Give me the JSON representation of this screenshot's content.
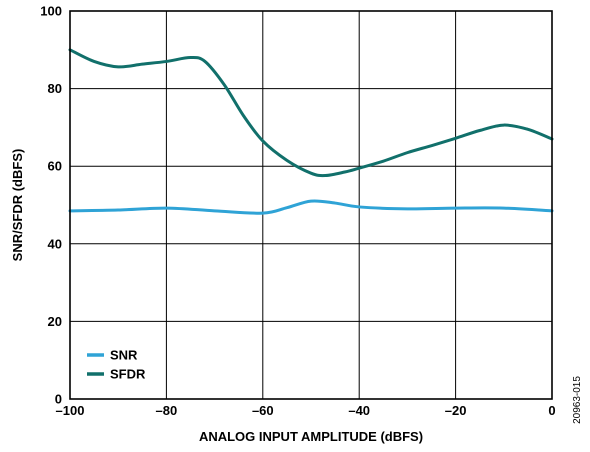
{
  "chart_data": {
    "type": "line",
    "xlabel": "ANALOG INPUT AMPLITUDE (dBFS)",
    "ylabel": "SNR/SFDR (dBFS)",
    "xlim": [
      -100,
      0
    ],
    "ylim": [
      0,
      100
    ],
    "x_ticks": [
      -100,
      -80,
      -60,
      -40,
      -20,
      0
    ],
    "x_tick_labels": [
      "–100",
      "–80",
      "–60",
      "–40",
      "–20",
      "0"
    ],
    "y_ticks": [
      0,
      20,
      40,
      60,
      80,
      100
    ],
    "y_tick_labels": [
      "0",
      "20",
      "40",
      "60",
      "80",
      "100"
    ],
    "grid": true,
    "legend_position": "bottom-left",
    "series": [
      {
        "name": "SNR",
        "color": "#2fa3d6",
        "points": [
          [
            -100,
            48.5
          ],
          [
            -90,
            48.7
          ],
          [
            -80,
            49.2
          ],
          [
            -70,
            48.5
          ],
          [
            -60,
            47.9
          ],
          [
            -55,
            49.3
          ],
          [
            -50,
            51.0
          ],
          [
            -45,
            50.5
          ],
          [
            -40,
            49.5
          ],
          [
            -30,
            49.0
          ],
          [
            -20,
            49.2
          ],
          [
            -10,
            49.2
          ],
          [
            0,
            48.5
          ]
        ]
      },
      {
        "name": "SFDR",
        "color": "#11706b",
        "points": [
          [
            -100,
            90.0
          ],
          [
            -95,
            87.0
          ],
          [
            -90,
            85.6
          ],
          [
            -85,
            86.3
          ],
          [
            -80,
            87.0
          ],
          [
            -75,
            88.0
          ],
          [
            -72,
            87.0
          ],
          [
            -68,
            81.0
          ],
          [
            -64,
            73.0
          ],
          [
            -60,
            66.5
          ],
          [
            -55,
            61.5
          ],
          [
            -50,
            58.2
          ],
          [
            -47,
            57.6
          ],
          [
            -43,
            58.5
          ],
          [
            -40,
            59.5
          ],
          [
            -35,
            61.3
          ],
          [
            -30,
            63.5
          ],
          [
            -25,
            65.3
          ],
          [
            -20,
            67.2
          ],
          [
            -15,
            69.2
          ],
          [
            -10,
            70.6
          ],
          [
            -5,
            69.5
          ],
          [
            0,
            67.0
          ]
        ]
      }
    ],
    "figure_id": "20963-015"
  }
}
